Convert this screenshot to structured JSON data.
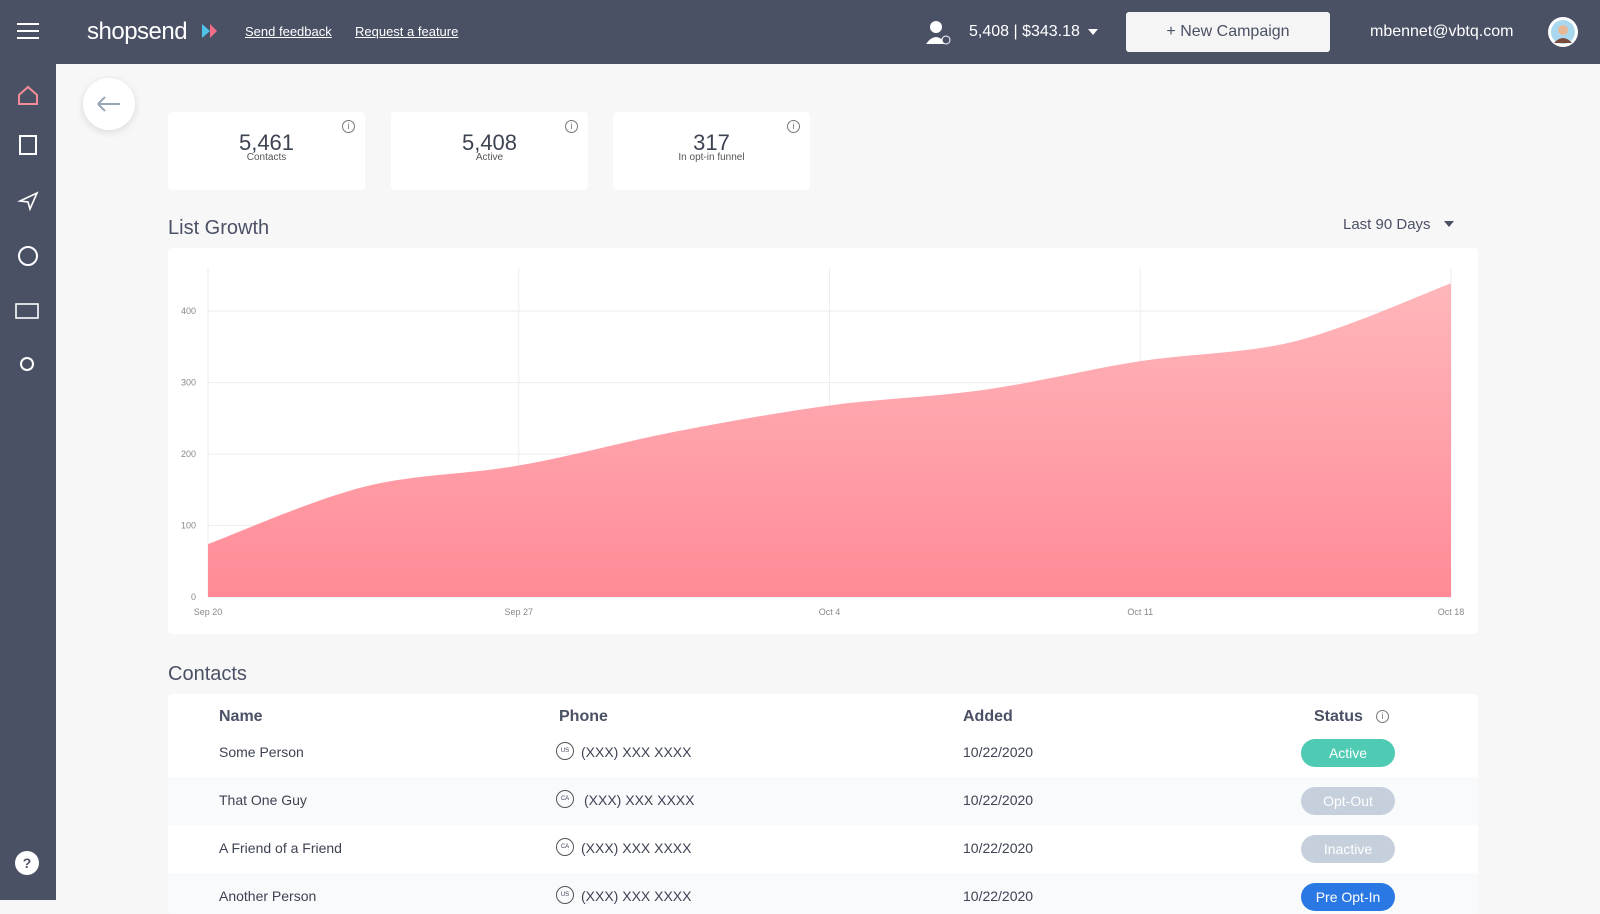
{
  "header": {
    "logo": "shopsend",
    "links": [
      "Send feedback",
      "Request a feature"
    ],
    "balance": "5,408 | $343.18",
    "new_campaign": "+ New Campaign",
    "user": "mbennet@vbtq.com"
  },
  "stats": [
    {
      "value": "5,461",
      "label": "Contacts"
    },
    {
      "value": "5,408",
      "label": "Active"
    },
    {
      "value": "317",
      "label": "In opt-in funnel"
    }
  ],
  "chart_data": {
    "type": "area",
    "title": "List Growth",
    "range": "Last 90 Days",
    "categories": [
      "Sep 20",
      null,
      "Sep 27",
      null,
      "Oct 4",
      null,
      "Oct 11",
      null,
      "Oct 18"
    ],
    "values": [
      74,
      154,
      184,
      231,
      268,
      290,
      330,
      358,
      439
    ],
    "ylim": [
      0,
      445
    ],
    "yticks": [
      0,
      100,
      200,
      300,
      400
    ],
    "grid": true,
    "color": "#ff8a96"
  },
  "contacts": {
    "title": "Contacts",
    "columns": [
      "Name",
      "Phone",
      "Added",
      "Status"
    ],
    "rows": [
      [
        "Some Person",
        "US",
        "(XXX) XXX XXXX",
        "10/22/2020",
        "Active"
      ],
      [
        "That One Guy",
        "CA",
        "(XXX) XXX XXXX",
        "10/22/2020",
        "Opt-Out"
      ],
      [
        "A Friend of a Friend",
        "CA",
        "(XXX) XXX XXXX",
        "10/22/2020",
        "Inactive"
      ],
      [
        "Another Person",
        "US",
        "(XXX) XXX XXXX",
        "10/22/2020",
        "Pre Opt-In"
      ]
    ]
  }
}
